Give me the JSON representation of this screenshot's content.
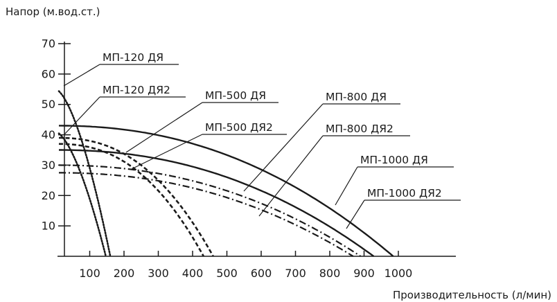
{
  "chart_data": {
    "type": "line",
    "ylabel": "Напор (м.вод.ст.)",
    "xlabel": "Производительность (л/мин)",
    "xlim": [
      0,
      1000
    ],
    "ylim": [
      0,
      70
    ],
    "x_ticks": [
      100,
      200,
      300,
      400,
      500,
      600,
      700,
      800,
      900,
      1000
    ],
    "y_ticks": [
      10,
      20,
      30,
      40,
      50,
      60,
      70
    ],
    "grid": false,
    "legend": "none",
    "series": [
      {
        "name": "МП-120 ДЯ",
        "style": "dotted",
        "shutoff_head": 55,
        "max_flow": 160,
        "exp": 1.6
      },
      {
        "name": "МП-120 ДЯ2",
        "style": "dotted",
        "shutoff_head": 41,
        "max_flow": 147,
        "exp": 1.6
      },
      {
        "name": "МП-500 ДЯ",
        "style": "dashed",
        "shutoff_head": 39,
        "max_flow": 460,
        "exp": 2.4
      },
      {
        "name": "МП-500 ДЯ2",
        "style": "dashed",
        "shutoff_head": 37,
        "max_flow": 432,
        "exp": 2.4
      },
      {
        "name": "МП-800 ДЯ",
        "style": "dashdot",
        "shutoff_head": 30,
        "max_flow": 890,
        "exp": 2.2
      },
      {
        "name": "МП-800 ДЯ2",
        "style": "dashdot",
        "shutoff_head": 27.5,
        "max_flow": 868,
        "exp": 2.2
      },
      {
        "name": "МП-1000 ДЯ",
        "style": "solid",
        "shutoff_head": 43,
        "max_flow": 985,
        "exp": 2.2
      },
      {
        "name": "МП-1000 ДЯ2",
        "style": "solid",
        "shutoff_head": 35,
        "max_flow": 928,
        "exp": 2.2
      }
    ]
  }
}
